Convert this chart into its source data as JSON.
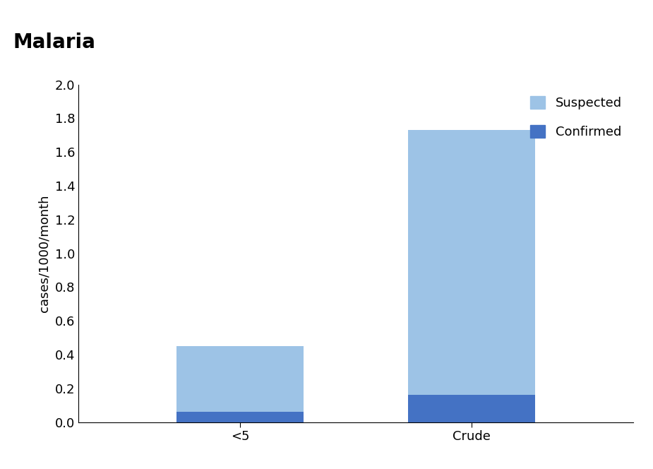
{
  "categories": [
    "<5",
    "Crude"
  ],
  "confirmed": [
    0.06,
    0.16
  ],
  "suspected": [
    0.39,
    1.57
  ],
  "color_confirmed": "#4472C4",
  "color_suspected": "#9DC3E6",
  "title": "Malaria",
  "ylabel": "cases/1000/month",
  "ylim": [
    0,
    2.0
  ],
  "yticks": [
    0.0,
    0.2,
    0.4,
    0.6,
    0.8,
    1.0,
    1.2,
    1.4,
    1.6,
    1.8,
    2.0
  ],
  "legend_suspected": "Suspected",
  "legend_confirmed": "Confirmed",
  "title_fontsize": 20,
  "ylabel_fontsize": 13,
  "tick_fontsize": 13,
  "legend_fontsize": 13,
  "bar_width": 0.55,
  "background_color": "#FFFFFF"
}
